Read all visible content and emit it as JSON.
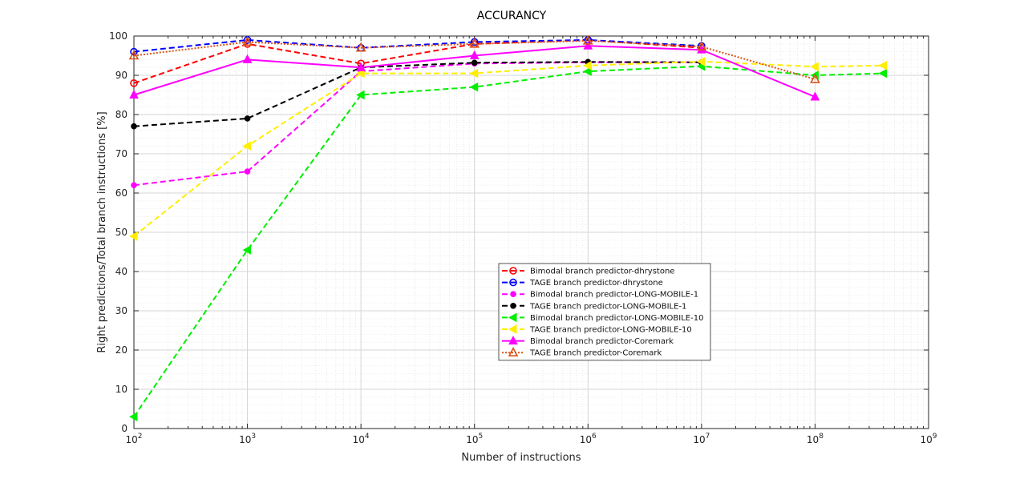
{
  "chart_data": {
    "type": "line",
    "title": "ACCURANCY",
    "xlabel": "Number of instructions",
    "ylabel": "Right predictions/Total branch instructions [%]",
    "xscale": "log",
    "xlim": [
      100,
      1000000000
    ],
    "ylim": [
      0,
      100
    ],
    "x_ticks": [
      100,
      1000,
      10000,
      100000,
      1000000,
      10000000,
      100000000,
      1000000000
    ],
    "x_tick_exponents": [
      "2",
      "3",
      "4",
      "5",
      "6",
      "7",
      "8",
      "9"
    ],
    "x_tick_base": "10",
    "y_ticks": [
      0,
      10,
      20,
      30,
      40,
      50,
      60,
      70,
      80,
      90,
      100
    ],
    "grid": true,
    "legend_position": "center-right",
    "series": [
      {
        "name": "Bimodal branch predictor-dhrystone",
        "color": "#ff0000",
        "line": "dashed",
        "marker": "circle-open",
        "x": [
          100,
          1000,
          10000,
          100000,
          1000000,
          10000000
        ],
        "y": [
          88,
          98,
          93,
          98,
          99,
          97
        ]
      },
      {
        "name": "TAGE branch predictor-dhrystone",
        "color": "#0000ff",
        "line": "dashed",
        "marker": "circle-open",
        "x": [
          100,
          1000,
          10000,
          100000,
          1000000,
          10000000
        ],
        "y": [
          96,
          99,
          97,
          98.5,
          99,
          97.5
        ]
      },
      {
        "name": "Bimodal branch predictor-LONG-MOBILE-1",
        "color": "#ff00ff",
        "line": "dashed",
        "marker": "dot",
        "x": [
          100,
          1000,
          10000,
          100000,
          1000000,
          10000000
        ],
        "y": [
          62,
          65.5,
          91,
          93,
          93.3,
          93.3
        ]
      },
      {
        "name": "TAGE branch predictor-LONG-MOBILE-1",
        "color": "#000000",
        "line": "dashed",
        "marker": "dot",
        "x": [
          100,
          1000,
          10000,
          100000,
          1000000,
          10000000
        ],
        "y": [
          77,
          79,
          92,
          93.2,
          93.4,
          93.3
        ]
      },
      {
        "name": "Bimodal branch predictor-LONG-MOBILE-10",
        "color": "#00ee00",
        "line": "dashed",
        "marker": "triangle-left",
        "x": [
          100,
          1000,
          10000,
          100000,
          1000000,
          10000000,
          100000000,
          400000000
        ],
        "y": [
          3,
          45.5,
          85,
          87,
          91,
          92.3,
          90,
          90.5
        ]
      },
      {
        "name": "TAGE branch predictor-LONG-MOBILE-10",
        "color": "#ffee00",
        "line": "dashed",
        "marker": "triangle-left",
        "x": [
          100,
          1000,
          10000,
          100000,
          1000000,
          10000000,
          100000000,
          400000000
        ],
        "y": [
          49,
          72,
          90.5,
          90.5,
          92.5,
          93.5,
          92.2,
          92.5
        ]
      },
      {
        "name": "Bimodal branch predictor-Coremark",
        "color": "#ff00ff",
        "line": "solid",
        "marker": "triangle-up",
        "x": [
          100,
          1000,
          10000,
          100000,
          1000000,
          10000000,
          100000000
        ],
        "y": [
          85,
          94,
          92,
          95,
          97.5,
          96.5,
          84.5
        ]
      },
      {
        "name": "TAGE branch predictor-Coremark",
        "color": "#d95319",
        "line": "dotted",
        "marker": "triangle-up-open",
        "x": [
          100,
          1000,
          10000,
          100000,
          1000000,
          10000000,
          100000000
        ],
        "y": [
          95,
          98.5,
          97,
          98,
          98.8,
          97.3,
          89
        ]
      }
    ]
  }
}
